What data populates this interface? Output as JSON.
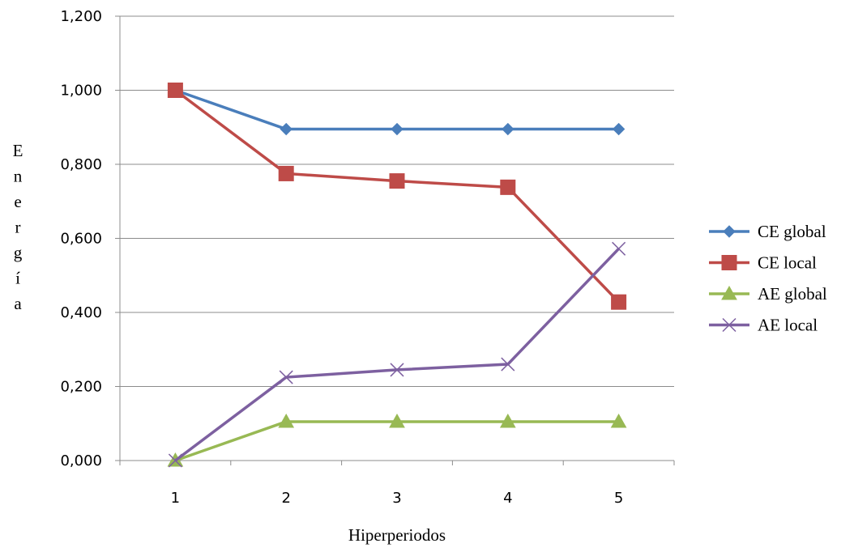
{
  "chart_data": {
    "type": "line",
    "title": "",
    "xlabel": "Hiperperiodos",
    "ylabel": "Energía",
    "categories": [
      "1",
      "2",
      "3",
      "4",
      "5"
    ],
    "ylim": [
      0,
      1.2
    ],
    "yticks": [
      0,
      0.2,
      0.4,
      0.6,
      0.8,
      1.0,
      1.2
    ],
    "ytick_labels": [
      "0,000",
      "0,200",
      "0,400",
      "0,600",
      "0,800",
      "1,000",
      "1,200"
    ],
    "grid": "horizontal",
    "legend_position": "right",
    "series": [
      {
        "name": "CE global",
        "values": [
          1.0,
          0.895,
          0.895,
          0.895,
          0.895
        ],
        "color": "#4A7EBB",
        "marker": "diamond"
      },
      {
        "name": "CE local",
        "values": [
          1.0,
          0.775,
          0.755,
          0.738,
          0.428
        ],
        "color": "#BE4B48",
        "marker": "square"
      },
      {
        "name": "AE global",
        "values": [
          0.0,
          0.105,
          0.105,
          0.105,
          0.105
        ],
        "color": "#98B954",
        "marker": "triangle"
      },
      {
        "name": "AE local",
        "values": [
          0.0,
          0.225,
          0.245,
          0.26,
          0.572
        ],
        "color": "#7D60A0",
        "marker": "x"
      }
    ]
  }
}
